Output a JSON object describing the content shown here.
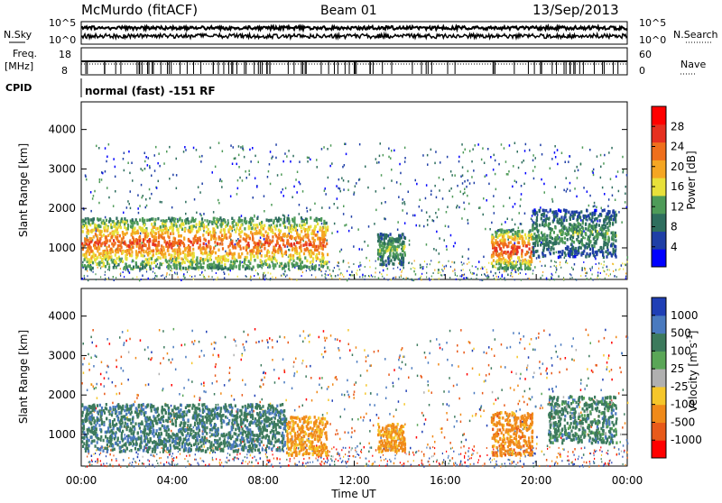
{
  "header": {
    "radar": "McMurdo (fitACF)",
    "beam": "Beam 01",
    "date": "13/Sep/2013"
  },
  "status_panels": {
    "nsky_label": "N.Sky",
    "nsearch_label": "N.Search",
    "noise_ticks_left": [
      "10^5",
      "10^0"
    ],
    "noise_ticks_right": [
      "10^5",
      "10^0"
    ],
    "freq_label_1": "Freq.",
    "freq_label_2": "[MHz]",
    "freq_ticks": [
      "18",
      "8"
    ],
    "nave_label": "Nave",
    "nave_ticks": [
      "60",
      "0"
    ],
    "cpid_label": "CPID",
    "cpid_value": "normal (fast) -151 RF"
  },
  "colors": {
    "power_scale": [
      "#0000ff",
      "#1f3fa6",
      "#2e6e5e",
      "#4e9b58",
      "#e8e03a",
      "#f5a623",
      "#ef6f1c",
      "#e63020",
      "#ff0000"
    ],
    "velocity_scale": [
      "#1f3fb5",
      "#4a7abf",
      "#3c7a5c",
      "#5aa657",
      "#b0b0b0",
      "#f5c62a",
      "#f08a1a",
      "#e85a1a",
      "#ff0000"
    ]
  },
  "chart_data": [
    {
      "type": "heatmap",
      "title": "Power",
      "xlabel": "",
      "ylabel": "Slant Range [km]",
      "x_ticks": [
        "00:00",
        "04:00",
        "08:00",
        "12:00",
        "16:00",
        "20:00",
        "00:00"
      ],
      "y_ticks": [
        "1000",
        "2000",
        "3000",
        "4000"
      ],
      "ylim": [
        200,
        4700
      ],
      "colorbar_label": "Power [dB]",
      "colorbar_ticks": [
        "4",
        "8",
        "12",
        "16",
        "20",
        "24",
        "28"
      ],
      "colorbar_range": [
        0,
        32
      ],
      "regions": [
        {
          "t_start": 0.0,
          "t_end": 10.8,
          "r_low": 500,
          "r_high": 1800,
          "level": 26
        },
        {
          "t_start": 13.0,
          "t_end": 14.2,
          "r_low": 600,
          "r_high": 1400,
          "level": 14
        },
        {
          "t_start": 18.0,
          "t_end": 19.8,
          "r_low": 500,
          "r_high": 1500,
          "level": 28
        },
        {
          "t_start": 19.8,
          "t_end": 23.5,
          "r_low": 800,
          "r_high": 2000,
          "level": 12
        }
      ]
    },
    {
      "type": "heatmap",
      "title": "Velocity",
      "xlabel": "Time UT",
      "ylabel": "Slant Range [km]",
      "x_ticks": [
        "00:00",
        "04:00",
        "08:00",
        "12:00",
        "16:00",
        "20:00",
        "00:00"
      ],
      "y_ticks": [
        "1000",
        "2000",
        "3000",
        "4000"
      ],
      "ylim": [
        200,
        4700
      ],
      "colorbar_label": "Velocity [m s^-1]",
      "colorbar_ticks": [
        "1000",
        "500",
        "100",
        "25",
        "-25",
        "-100",
        "-500",
        "-1000"
      ],
      "regions": [
        {
          "t_start": 0.0,
          "t_end": 9.0,
          "r_low": 600,
          "r_high": 1800,
          "velocity": 200
        },
        {
          "t_start": 9.0,
          "t_end": 10.8,
          "r_low": 500,
          "r_high": 1500,
          "velocity": -150
        },
        {
          "t_start": 13.0,
          "t_end": 14.2,
          "r_low": 600,
          "r_high": 1300,
          "velocity": -150
        },
        {
          "t_start": 18.0,
          "t_end": 19.8,
          "r_low": 500,
          "r_high": 1600,
          "velocity": -200
        },
        {
          "t_start": 20.5,
          "t_end": 23.5,
          "r_low": 800,
          "r_high": 2000,
          "velocity": 150
        }
      ]
    }
  ]
}
